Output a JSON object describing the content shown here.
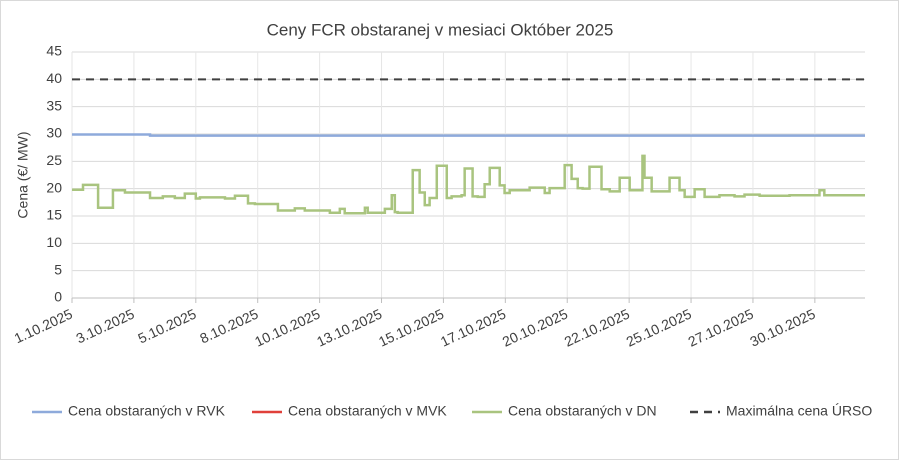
{
  "chart_data": {
    "type": "line",
    "title": "Ceny FCR obstaranej v mesiaci Október 2025",
    "y_label": "Cena (€/ MW)",
    "xlim": [
      1,
      32
    ],
    "ylim": [
      0,
      45
    ],
    "yticks": [
      0,
      5,
      10,
      15,
      20,
      25,
      30,
      35,
      40,
      45
    ],
    "xticks": [
      {
        "value": 1,
        "label": "1.10.2025"
      },
      {
        "value": 3.42,
        "label": "3.10.2025"
      },
      {
        "value": 5.84,
        "label": "5.10.2025"
      },
      {
        "value": 8.26,
        "label": "8.10.2025"
      },
      {
        "value": 10.68,
        "label": "10.10.2025"
      },
      {
        "value": 13.1,
        "label": "13.10.2025"
      },
      {
        "value": 15.52,
        "label": "15.10.2025"
      },
      {
        "value": 17.94,
        "label": "17.10.2025"
      },
      {
        "value": 20.36,
        "label": "20.10.2025"
      },
      {
        "value": 22.78,
        "label": "22.10.2025"
      },
      {
        "value": 25.2,
        "label": "25.10.2025"
      },
      {
        "value": 27.62,
        "label": "27.10.2025"
      },
      {
        "value": 30.04,
        "label": "30.10.2025"
      }
    ],
    "grid": true,
    "step": "post",
    "legend": "bottom",
    "series": [
      {
        "name": "Cena obstaraných v RVK",
        "color": "#8eaadb",
        "dash": false,
        "x": [
          1,
          4.05,
          32
        ],
        "values": [
          29.9,
          29.7,
          29.7
        ]
      },
      {
        "name": "Cena obstaraných v MVK",
        "color": "#e0403a",
        "dash": false,
        "x": [
          1,
          32
        ],
        "values": [
          null,
          null
        ]
      },
      {
        "name": "Cena obstaraných v DN",
        "color": "#a9c47f",
        "dash": false,
        "x": [
          1,
          1.43,
          2.02,
          2.6,
          3.07,
          4.05,
          4.55,
          5.02,
          5.41,
          5.84,
          6,
          6.98,
          7.37,
          7.88,
          8.15,
          9.05,
          9.71,
          10.1,
          11.08,
          11.47,
          11.66,
          12.45,
          12.56,
          13.23,
          13.5,
          13.62,
          13.73,
          14.32,
          14.59,
          14.79,
          14.98,
          15.26,
          15.65,
          15.84,
          16.23,
          16.35,
          16.66,
          16.86,
          17.13,
          17.33,
          17.72,
          17.91,
          18.11,
          18.89,
          19.48,
          19.67,
          20.26,
          20.53,
          20.77,
          20.96,
          21.23,
          21.7,
          22.02,
          22.41,
          22.8,
          23.3,
          23.38,
          23.66,
          24.36,
          24.75,
          24.95,
          25.34,
          25.73,
          26.31,
          26.9,
          27.29,
          27.88,
          29.05,
          30.22,
          30.41,
          32
        ],
        "values": [
          19.8,
          20.7,
          16.5,
          19.7,
          19.3,
          18.3,
          18.6,
          18.3,
          19.1,
          18.2,
          18.4,
          18.2,
          18.7,
          17.3,
          17.2,
          16.0,
          16.4,
          16.0,
          15.6,
          16.3,
          15.5,
          16.5,
          15.6,
          16.3,
          18.8,
          15.7,
          15.6,
          23.4,
          19.3,
          17.0,
          18.3,
          24.2,
          18.3,
          18.6,
          18.8,
          23.7,
          18.6,
          18.5,
          20.8,
          23.8,
          20.6,
          19.2,
          19.7,
          20.2,
          19.2,
          20.1,
          24.3,
          21.8,
          20.1,
          20.0,
          24.0,
          19.9,
          19.5,
          22.0,
          19.7,
          26.0,
          22.0,
          19.5,
          22.0,
          19.7,
          18.5,
          19.9,
          18.5,
          18.8,
          18.6,
          18.9,
          18.7,
          18.8,
          19.7,
          18.8,
          18.8
        ]
      },
      {
        "name": "Maximálna cena ÚRSO",
        "color": "#404040",
        "dash": true,
        "x": [
          1,
          32
        ],
        "values": [
          40,
          40
        ]
      }
    ]
  }
}
